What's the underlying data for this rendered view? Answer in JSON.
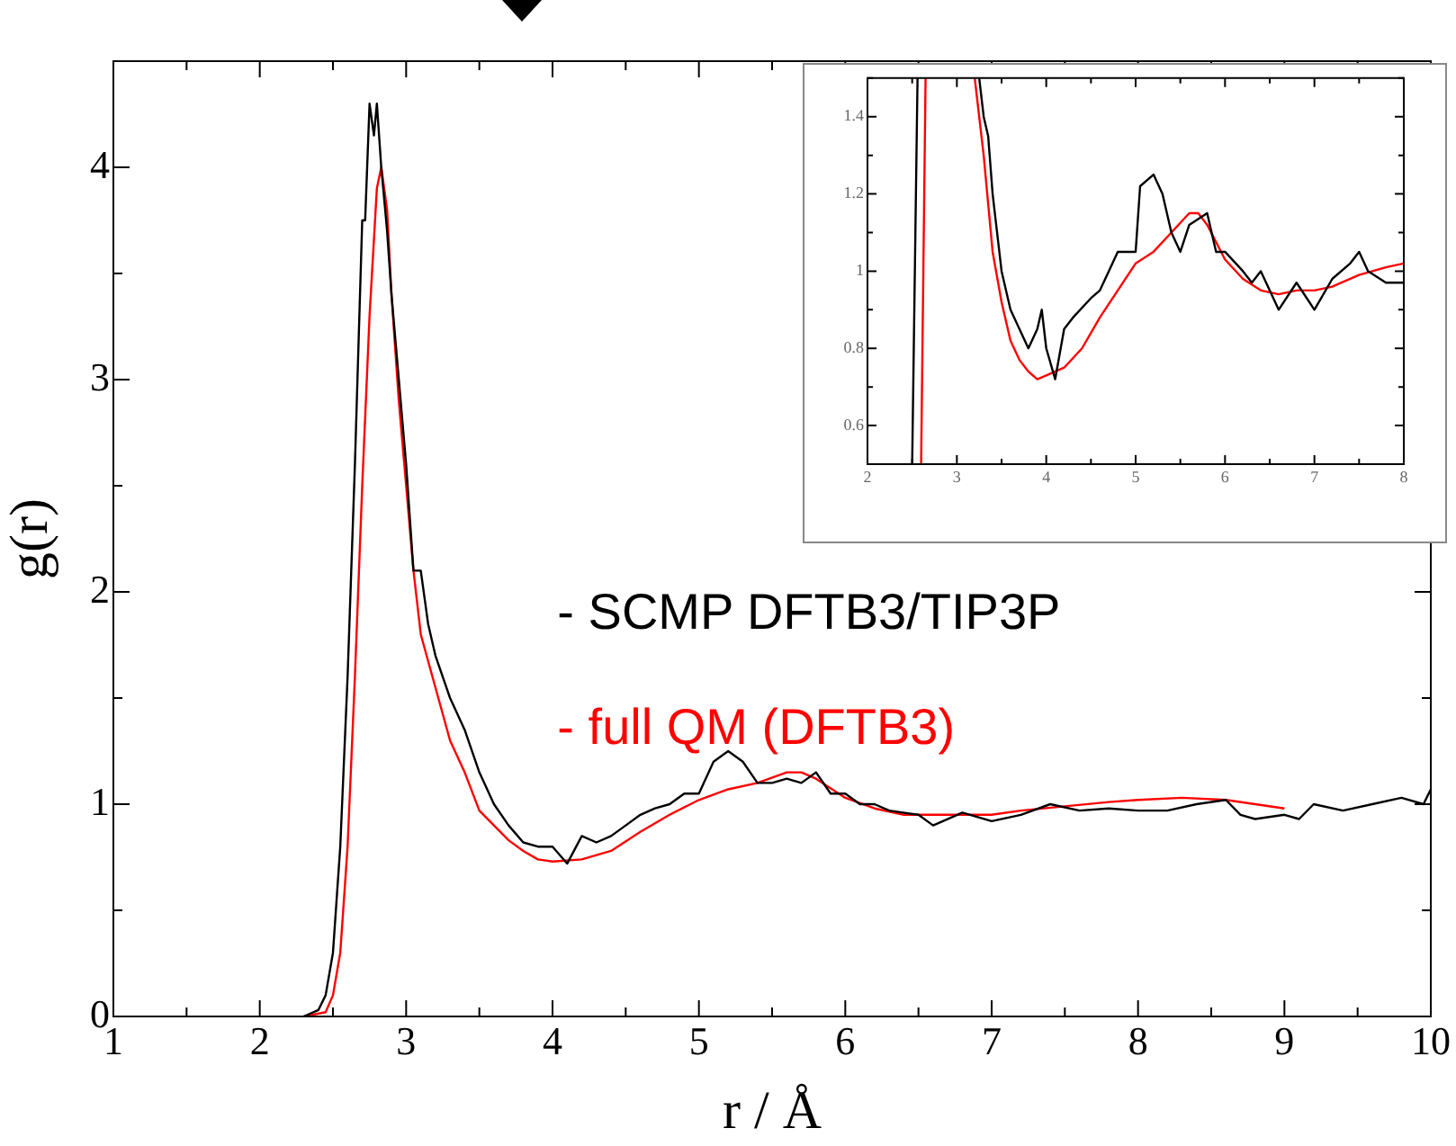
{
  "chart_data": [
    {
      "type": "line",
      "xlabel": "r / Å",
      "ylabel": "g(r)",
      "xlim": [
        1,
        10
      ],
      "ylim": [
        0,
        4.5
      ],
      "xticks": [
        1,
        {
          "value": 1.5,
          "label": null
        },
        2,
        {
          "value": 2.5,
          "label": null
        },
        3,
        {
          "value": 3.5,
          "label": null
        },
        4,
        {
          "value": 4.5,
          "label": null
        },
        5,
        {
          "value": 5.5,
          "label": null
        },
        6,
        {
          "value": 6.5,
          "label": null
        },
        7,
        {
          "value": 7.5,
          "label": null
        },
        8,
        {
          "value": 8.5,
          "label": null
        },
        9,
        {
          "value": 9.5,
          "label": null
        },
        10
      ],
      "yticks": [
        0,
        {
          "value": 0.5,
          "label": null
        },
        1,
        {
          "value": 1.5,
          "label": null
        },
        2,
        {
          "value": 2.5,
          "label": null
        },
        3,
        {
          "value": 3.5,
          "label": null
        },
        4
      ],
      "legend": "right",
      "series": [
        {
          "name": "- SCMP DFTB3/TIP3P",
          "color": "#000000",
          "x": [
            2.3,
            2.4,
            2.45,
            2.5,
            2.55,
            2.6,
            2.65,
            2.7,
            2.72,
            2.75,
            2.78,
            2.8,
            2.83,
            2.87,
            2.9,
            2.95,
            3.0,
            3.05,
            3.1,
            3.15,
            3.2,
            3.3,
            3.4,
            3.5,
            3.6,
            3.7,
            3.8,
            3.9,
            4.0,
            4.1,
            4.2,
            4.3,
            4.4,
            4.5,
            4.6,
            4.7,
            4.8,
            4.9,
            5.0,
            5.1,
            5.2,
            5.3,
            5.4,
            5.5,
            5.6,
            5.7,
            5.8,
            5.9,
            6.0,
            6.1,
            6.2,
            6.3,
            6.5,
            6.6,
            6.8,
            7.0,
            7.2,
            7.4,
            7.6,
            7.8,
            8.0,
            8.2,
            8.4,
            8.6,
            8.7,
            8.8,
            9.0,
            9.1,
            9.2,
            9.4,
            9.6,
            9.8,
            9.95,
            10.0
          ],
          "values": [
            0,
            0.03,
            0.1,
            0.3,
            0.8,
            1.6,
            2.6,
            3.75,
            3.75,
            4.3,
            4.15,
            4.3,
            4.0,
            3.7,
            3.4,
            3.0,
            2.6,
            2.1,
            2.1,
            1.85,
            1.7,
            1.5,
            1.35,
            1.15,
            1.0,
            0.9,
            0.82,
            0.8,
            0.8,
            0.72,
            0.85,
            0.82,
            0.85,
            0.9,
            0.95,
            0.98,
            1.0,
            1.05,
            1.05,
            1.2,
            1.25,
            1.2,
            1.1,
            1.1,
            1.12,
            1.1,
            1.15,
            1.05,
            1.05,
            1.0,
            1.0,
            0.97,
            0.95,
            0.9,
            0.96,
            0.92,
            0.95,
            1.0,
            0.97,
            0.98,
            0.97,
            0.97,
            1.0,
            1.02,
            0.95,
            0.93,
            0.95,
            0.93,
            1.0,
            0.97,
            1.0,
            1.03,
            1.0,
            1.07
          ]
        },
        {
          "name": "- full QM (DFTB3)",
          "color": "#ff0000",
          "x": [
            2.3,
            2.45,
            2.5,
            2.55,
            2.6,
            2.65,
            2.7,
            2.75,
            2.8,
            2.83,
            2.87,
            2.9,
            2.95,
            3.0,
            3.05,
            3.1,
            3.2,
            3.3,
            3.4,
            3.5,
            3.6,
            3.7,
            3.8,
            3.9,
            4.0,
            4.2,
            4.4,
            4.6,
            4.8,
            5.0,
            5.2,
            5.4,
            5.6,
            5.7,
            5.8,
            6.0,
            6.2,
            6.4,
            6.6,
            6.8,
            7.0,
            7.2,
            7.5,
            7.8,
            8.0,
            8.3,
            8.6,
            8.8,
            9.0
          ],
          "values": [
            0,
            0.02,
            0.1,
            0.3,
            0.8,
            1.6,
            2.5,
            3.3,
            3.9,
            4.0,
            3.8,
            3.4,
            2.9,
            2.5,
            2.1,
            1.8,
            1.55,
            1.3,
            1.15,
            0.97,
            0.9,
            0.83,
            0.78,
            0.74,
            0.73,
            0.74,
            0.78,
            0.87,
            0.95,
            1.02,
            1.07,
            1.1,
            1.15,
            1.15,
            1.12,
            1.03,
            0.98,
            0.95,
            0.95,
            0.95,
            0.95,
            0.97,
            0.99,
            1.01,
            1.02,
            1.03,
            1.02,
            1.0,
            0.98
          ]
        }
      ]
    },
    {
      "type": "line",
      "xlim": [
        2,
        8
      ],
      "ylim": [
        0.5,
        1.5
      ],
      "xticks": [
        2,
        {
          "value": 2.5,
          "label": null
        },
        3,
        {
          "value": 3.5,
          "label": null
        },
        4,
        {
          "value": 4.5,
          "label": null
        },
        5,
        {
          "value": 5.5,
          "label": null
        },
        6,
        {
          "value": 6.5,
          "label": null
        },
        7,
        {
          "value": 7.5,
          "label": null
        },
        8
      ],
      "yticks": [
        {
          "value": 0.5,
          "label": null
        },
        0.6,
        {
          "value": 0.7,
          "label": null
        },
        0.8,
        {
          "value": 0.9,
          "label": null
        },
        1,
        {
          "value": 1.1,
          "label": null
        },
        1.2,
        {
          "value": 1.3,
          "label": null
        },
        1.4,
        {
          "value": 1.5,
          "label": null
        }
      ],
      "series": [
        {
          "color": "#000000",
          "x": [
            2.5,
            2.56,
            3.0,
            3.25,
            3.3,
            3.35,
            3.4,
            3.5,
            3.6,
            3.7,
            3.8,
            3.9,
            3.95,
            4.0,
            4.1,
            4.2,
            4.3,
            4.5,
            4.6,
            4.7,
            4.8,
            4.9,
            5.0,
            5.05,
            5.2,
            5.3,
            5.4,
            5.5,
            5.6,
            5.8,
            5.9,
            6.0,
            6.2,
            6.3,
            6.4,
            6.6,
            6.8,
            7.0,
            7.2,
            7.4,
            7.5,
            7.6,
            7.8,
            8.0
          ],
          "values": [
            0.5,
            1.5,
            null,
            1.5,
            1.4,
            1.35,
            1.2,
            1.0,
            0.9,
            0.85,
            0.8,
            0.85,
            0.9,
            0.8,
            0.72,
            0.85,
            0.88,
            0.93,
            0.95,
            1.0,
            1.05,
            1.05,
            1.05,
            1.22,
            1.25,
            1.2,
            1.1,
            1.05,
            1.12,
            1.15,
            1.05,
            1.05,
            1.0,
            0.97,
            1.0,
            0.9,
            0.97,
            0.9,
            0.98,
            1.02,
            1.05,
            1.0,
            0.97,
            0.97
          ]
        },
        {
          "color": "#ff0000",
          "x": [
            2.6,
            2.65,
            3.0,
            3.2,
            3.3,
            3.4,
            3.5,
            3.6,
            3.7,
            3.8,
            3.9,
            4.0,
            4.2,
            4.4,
            4.6,
            4.8,
            5.0,
            5.2,
            5.4,
            5.6,
            5.7,
            5.8,
            6.0,
            6.2,
            6.4,
            6.6,
            6.8,
            7.0,
            7.2,
            7.5,
            7.8,
            8.0
          ],
          "values": [
            0.5,
            1.5,
            null,
            1.5,
            1.3,
            1.05,
            0.92,
            0.82,
            0.77,
            0.74,
            0.72,
            0.73,
            0.75,
            0.8,
            0.88,
            0.95,
            1.02,
            1.05,
            1.1,
            1.15,
            1.15,
            1.12,
            1.03,
            0.98,
            0.95,
            0.94,
            0.95,
            0.95,
            0.96,
            0.99,
            1.01,
            1.02
          ]
        }
      ]
    }
  ]
}
